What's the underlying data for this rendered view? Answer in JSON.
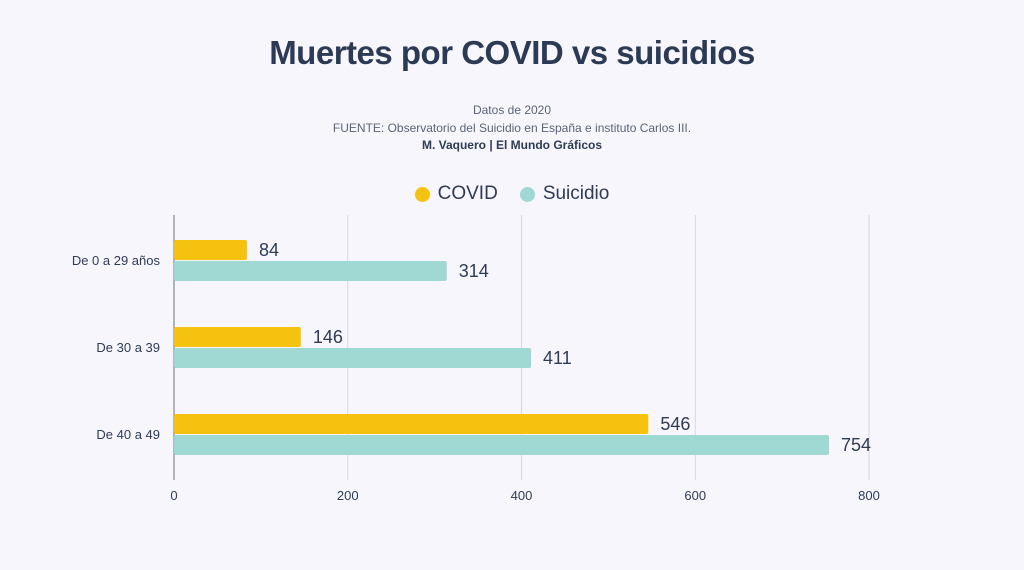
{
  "chart_data": {
    "type": "bar",
    "orientation": "horizontal",
    "title": "Muertes por COVID vs suicidios",
    "subtitle": "Datos de 2020",
    "source": "FUENTE: Observatorio del Suicidio en España e instituto Carlos III.",
    "credit": "M. Vaquero | El Mundo Gráficos",
    "categories": [
      "De 0 a 29 años",
      "De 30 a 39",
      "De 40 a 49"
    ],
    "series": [
      {
        "name": "COVID",
        "color": "#f5c30f",
        "values": [
          84,
          146,
          546
        ]
      },
      {
        "name": "Suicidio",
        "color": "#a0d8d3",
        "values": [
          314,
          411,
          754
        ]
      }
    ],
    "xlim": [
      0,
      800
    ],
    "xticks": [
      "0",
      "200",
      "400",
      "600",
      "800"
    ],
    "grid": true,
    "legend": "top-center"
  }
}
